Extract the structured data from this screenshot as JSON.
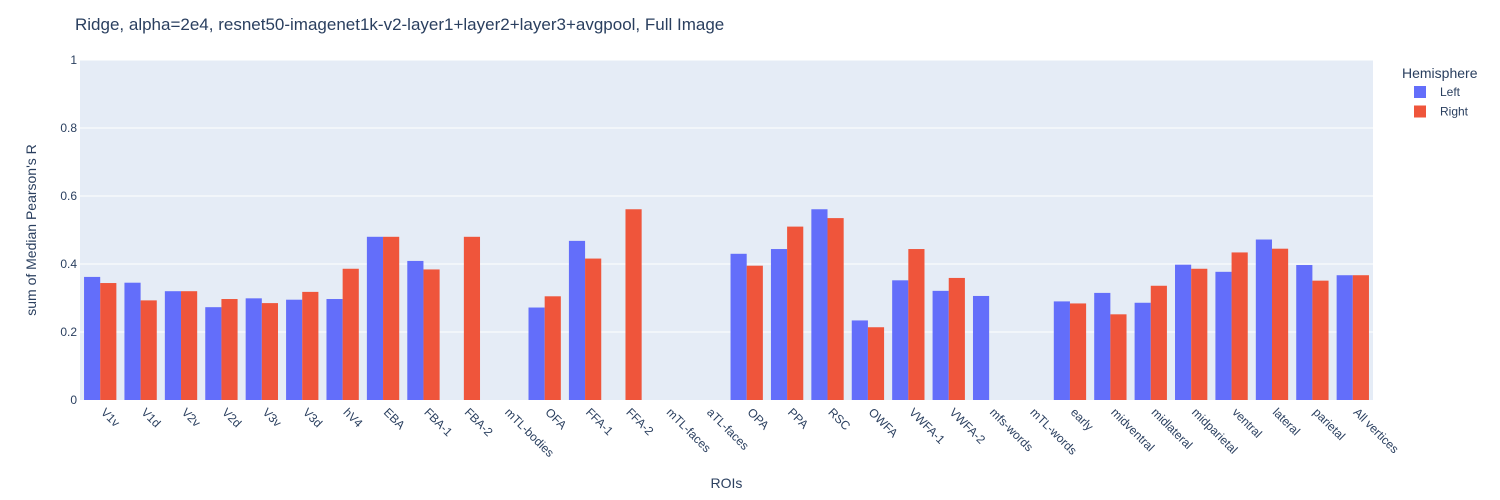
{
  "chart_data": {
    "type": "bar",
    "title": "Ridge, alpha=2e4, resnet50-imagenet1k-v2-layer1+layer2+layer3+avgpool, Full Image",
    "xlabel": "ROIs",
    "ylabel": "sum of Median Pearson's R",
    "ylim": [
      0,
      1
    ],
    "yticks": [
      "0",
      "0.2",
      "0.4",
      "0.6",
      "0.8",
      "1"
    ],
    "grid": true,
    "legend_position": "top-right",
    "legend_title": "Hemisphere",
    "categories": [
      "V1v",
      "V1d",
      "V2v",
      "V2d",
      "V3v",
      "V3d",
      "hV4",
      "EBA",
      "FBA-1",
      "FBA-2",
      "mTL-bodies",
      "OFA",
      "FFA-1",
      "FFA-2",
      "mTL-faces",
      "aTL-faces",
      "OPA",
      "PPA",
      "RSC",
      "OWFA",
      "VWFA-1",
      "VWFA-2",
      "mfs-words",
      "mTL-words",
      "early",
      "midventral",
      "midlateral",
      "midparietal",
      "ventral",
      "lateral",
      "parietal",
      "All vertices"
    ],
    "series": [
      {
        "name": "Left",
        "color": "#636efa",
        "values": [
          0.362,
          0.345,
          0.32,
          0.273,
          0.299,
          0.295,
          0.297,
          0.48,
          0.409,
          null,
          null,
          0.272,
          0.468,
          null,
          null,
          null,
          0.43,
          0.444,
          0.561,
          0.234,
          0.352,
          0.321,
          0.306,
          null,
          0.29,
          0.315,
          0.286,
          0.398,
          0.377,
          0.472,
          0.397,
          0.367
        ]
      },
      {
        "name": "Right",
        "color": "#ef553b",
        "values": [
          0.344,
          0.293,
          0.32,
          0.297,
          0.285,
          0.318,
          0.386,
          0.48,
          0.384,
          0.48,
          null,
          0.305,
          0.416,
          0.561,
          null,
          null,
          0.395,
          0.51,
          0.535,
          0.214,
          0.444,
          0.359,
          null,
          null,
          0.284,
          0.252,
          0.336,
          0.386,
          0.434,
          0.445,
          0.351,
          0.367
        ]
      }
    ]
  },
  "colors": {
    "plot_bg": "#e5ecf6",
    "grid": "#ffffff",
    "text": "#2a3f5f"
  }
}
